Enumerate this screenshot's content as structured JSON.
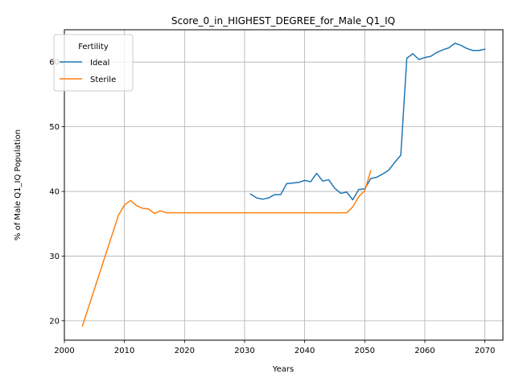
{
  "chart_data": {
    "type": "line",
    "title": "Score_0_in_HIGHEST_DEGREE_for_Male_Q1_IQ",
    "xlabel": "Years",
    "ylabel": "% of Male Q1_IQ Population",
    "xlim": [
      2000,
      2073
    ],
    "ylim": [
      17,
      65
    ],
    "xticks": [
      2000,
      2010,
      2020,
      2030,
      2040,
      2050,
      2060,
      2070
    ],
    "yticks": [
      20,
      30,
      40,
      50,
      60
    ],
    "grid": true,
    "legend": {
      "title": "Fertility",
      "placement": "top-left"
    },
    "series": [
      {
        "name": "Ideal",
        "color": "#1f77b4",
        "points": [
          [
            2031,
            39.6
          ],
          [
            2032,
            39.0
          ],
          [
            2033,
            38.8
          ],
          [
            2034,
            39.0
          ],
          [
            2035,
            39.5
          ],
          [
            2036,
            39.5
          ],
          [
            2037,
            41.2
          ],
          [
            2038,
            41.3
          ],
          [
            2039,
            41.4
          ],
          [
            2040,
            41.7
          ],
          [
            2041,
            41.5
          ],
          [
            2042,
            42.8
          ],
          [
            2043,
            41.6
          ],
          [
            2044,
            41.8
          ],
          [
            2045,
            40.5
          ],
          [
            2046,
            39.7
          ],
          [
            2047,
            39.9
          ],
          [
            2048,
            38.7
          ],
          [
            2049,
            40.3
          ],
          [
            2050,
            40.4
          ],
          [
            2051,
            42.0
          ],
          [
            2052,
            42.2
          ],
          [
            2053,
            42.7
          ],
          [
            2054,
            43.3
          ],
          [
            2055,
            44.5
          ],
          [
            2056,
            45.6
          ],
          [
            2057,
            60.6
          ],
          [
            2058,
            61.3
          ],
          [
            2059,
            60.4
          ],
          [
            2060,
            60.7
          ],
          [
            2061,
            60.9
          ],
          [
            2062,
            61.5
          ],
          [
            2063,
            61.9
          ],
          [
            2064,
            62.2
          ],
          [
            2065,
            62.9
          ],
          [
            2066,
            62.6
          ],
          [
            2067,
            62.1
          ],
          [
            2068,
            61.8
          ],
          [
            2069,
            61.8
          ],
          [
            2070,
            62.0
          ]
        ]
      },
      {
        "name": "Sterile",
        "color": "#ff7f0e",
        "points": [
          [
            2003,
            19.2
          ],
          [
            2009,
            36.3
          ],
          [
            2010,
            37.9
          ],
          [
            2011,
            38.6
          ],
          [
            2012,
            37.8
          ],
          [
            2013,
            37.4
          ],
          [
            2014,
            37.3
          ],
          [
            2015,
            36.6
          ],
          [
            2016,
            37.0
          ],
          [
            2017,
            36.7
          ],
          [
            2018,
            36.7
          ],
          [
            2047,
            36.7
          ],
          [
            2048,
            37.6
          ],
          [
            2049,
            39.2
          ],
          [
            2050,
            40.1
          ],
          [
            2051,
            43.2
          ]
        ]
      }
    ]
  }
}
